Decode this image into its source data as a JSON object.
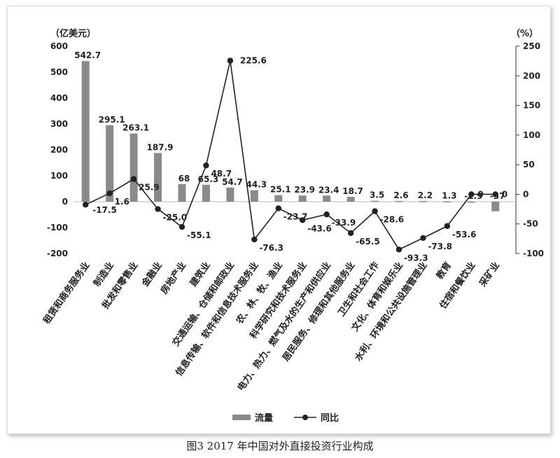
{
  "caption": "图3  2017 年中国对外直接投资行业构成",
  "chart_data": {
    "type": "bar",
    "y_left_unit": "（亿美元）",
    "y_right_unit": "（%）",
    "y_left_range": [
      -200,
      600
    ],
    "y_left_ticks": [
      600,
      500,
      400,
      300,
      200,
      100,
      0,
      -100,
      -200
    ],
    "y_right_range": [
      -100,
      250
    ],
    "y_right_ticks": [
      250,
      200,
      150,
      100,
      50,
      0,
      -50,
      -100
    ],
    "categories": [
      "租赁和商务服务业",
      "制造业",
      "批发和零售业",
      "金融业",
      "房地产业",
      "建筑业",
      "交通运输、仓储和邮政业",
      "信息传输、软件和信息技术服务业",
      "农、林、牧、渔业",
      "科学研究和技术服务业",
      "电力、热力、燃气及水的生产和供应业",
      "居民服务、修理和其他服务业",
      "卫生和社会工作",
      "文化、体育和娱乐业",
      "水利、环境和公共设施管理业",
      "教育",
      "住宿和餐饮业",
      "采矿业"
    ],
    "series": [
      {
        "name": "流量",
        "type": "bar",
        "axis": "left",
        "color": "#8a8a8a",
        "values": [
          542.7,
          295.1,
          263.1,
          187.9,
          68,
          65.3,
          54.7,
          44.3,
          25.1,
          23.9,
          23.4,
          18.7,
          3.5,
          2.6,
          2.2,
          1.3,
          -1.9,
          -37
        ]
      },
      {
        "name": "同比",
        "type": "line",
        "axis": "right",
        "color": "#222222",
        "values": [
          -17.5,
          1.6,
          25.9,
          -25.0,
          -55.1,
          48.7,
          225.6,
          -76.3,
          -23.7,
          -43.6,
          -33.9,
          -65.5,
          -28.6,
          -93.3,
          -73.8,
          -53.6,
          0,
          0
        ]
      }
    ],
    "bar_labels": [
      "542.7",
      "295.1",
      "263.1",
      "187.9",
      "68",
      "65.3",
      "54.7",
      "44.3",
      "25.1",
      "23.9",
      "23.4",
      "18.7",
      "3.5",
      "2.6",
      "2.2",
      "1.3",
      "-1.9",
      "-37"
    ],
    "line_labels": [
      "-17.5",
      "1.6",
      "25.9",
      "-25.0",
      "-55.1",
      "48.7",
      "225.6",
      "-76.3",
      "-23.7",
      "-43.6",
      "-33.9",
      "-65.5",
      "-28.6",
      "-93.3",
      "-73.8",
      "-53.6",
      "0",
      "0"
    ],
    "legend": [
      "流量",
      "同比"
    ],
    "legend_position": "bottom"
  }
}
